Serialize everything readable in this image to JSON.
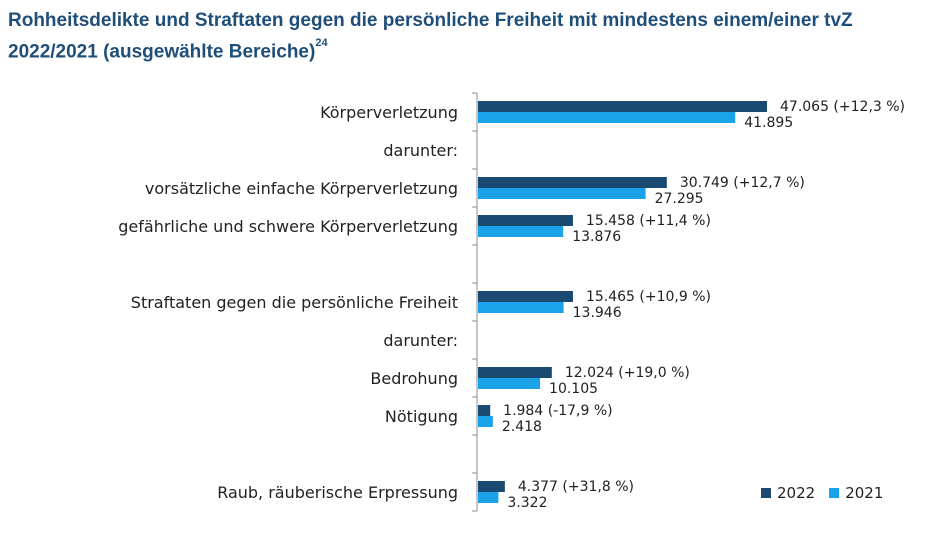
{
  "title": {
    "text": "Rohheitsdelikte und Straftaten gegen die persönliche Freiheit mit mindestens einem/einer tvZ 2022/2021 (ausgewählte Bereiche)",
    "footnote": "24"
  },
  "colors": {
    "series_2022": "#1a4a72",
    "series_2021": "#1aa3e8",
    "axis": "#8c8c8c"
  },
  "chart_data": {
    "type": "bar",
    "orientation": "horizontal",
    "grid": false,
    "legend_position": "bottom-right",
    "rows": [
      {
        "label": "Körperverletzung",
        "v2022": 47065,
        "v2021": 41895,
        "label2022": "47.065 (+12,3 %)",
        "label2021": "41.895"
      },
      {
        "label": "darunter:",
        "header": true
      },
      {
        "label": "vorsätzliche einfache Körperverletzung",
        "v2022": 30749,
        "v2021": 27295,
        "label2022": "30.749 (+12,7 %)",
        "label2021": "27.295"
      },
      {
        "label": "gefährliche und schwere Körperverletzung",
        "v2022": 15458,
        "v2021": 13876,
        "label2022": "15.458 (+11,4 %)",
        "label2021": "13.876"
      },
      {
        "label": "Straftaten gegen die persönliche Freiheit",
        "v2022": 15465,
        "v2021": 13946,
        "label2022": "15.465 (+10,9 %)",
        "label2021": "13.946"
      },
      {
        "label": "darunter:",
        "header": true
      },
      {
        "label": "Bedrohung",
        "v2022": 12024,
        "v2021": 10105,
        "label2022": "12.024 (+19,0 %)",
        "label2021": "10.105"
      },
      {
        "label": "Nötigung",
        "v2022": 1984,
        "v2021": 2418,
        "label2022": "1.984 (-17,9 %)",
        "label2021": "2.418"
      },
      {
        "label": "Raub, räuberische Erpressung",
        "v2022": 4377,
        "v2021": 3322,
        "label2022": "4.377 (+31,8 %)",
        "label2021": "3.322"
      }
    ],
    "series": [
      {
        "name": "2022",
        "key": "v2022"
      },
      {
        "name": "2021",
        "key": "v2021"
      }
    ]
  }
}
